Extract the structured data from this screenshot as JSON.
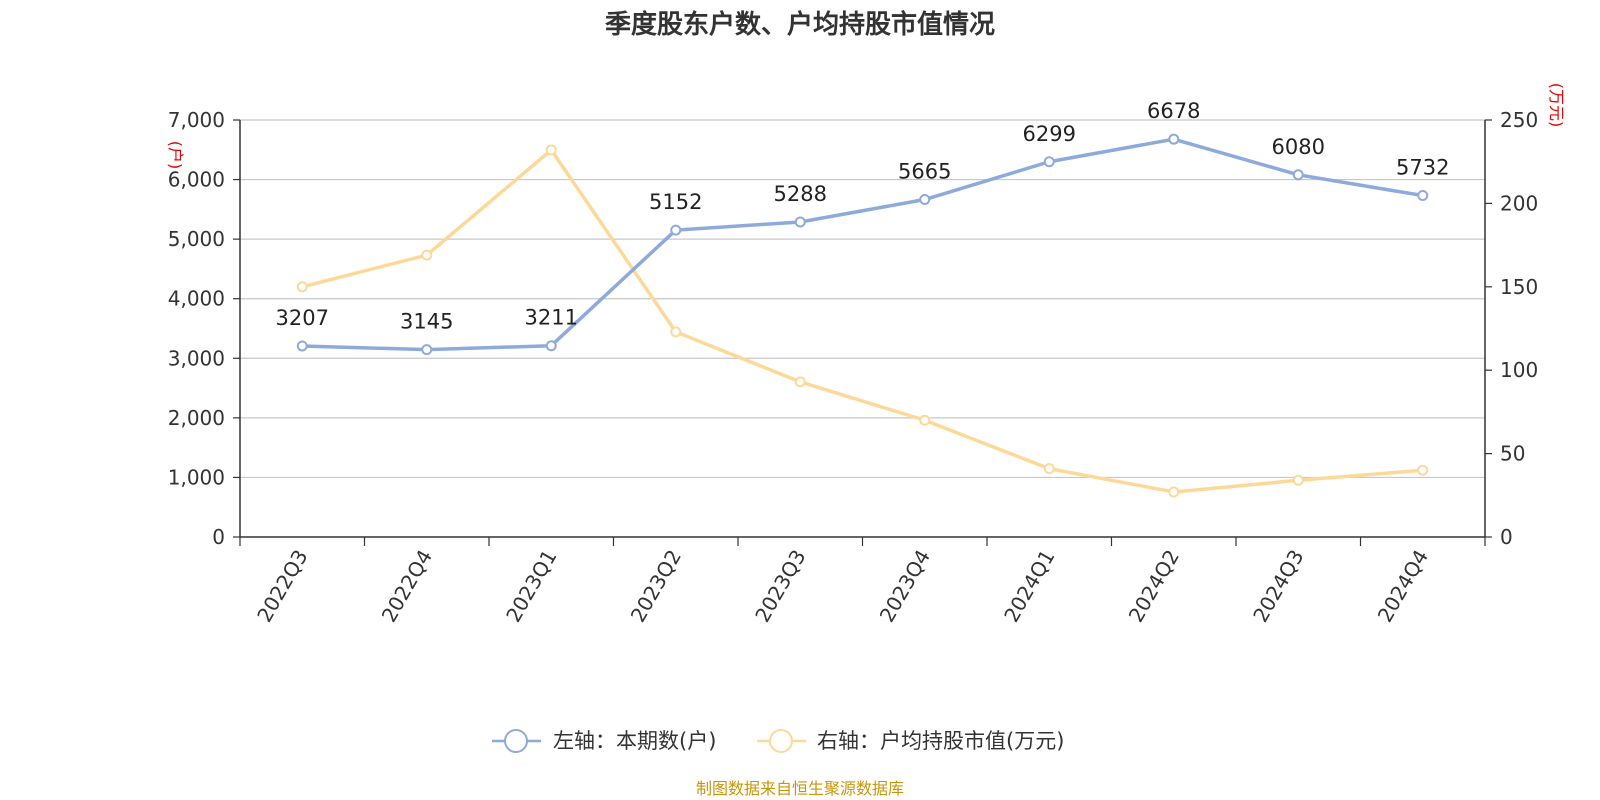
{
  "chart_data": {
    "type": "line",
    "title": "季度股东户数、户均持股市值情况",
    "categories": [
      "2022Q3",
      "2022Q4",
      "2023Q1",
      "2023Q2",
      "2023Q3",
      "2023Q4",
      "2024Q1",
      "2024Q2",
      "2024Q3",
      "2024Q4"
    ],
    "left_axis": {
      "unit": "(户)",
      "ylim": [
        0,
        7000
      ],
      "ticks": [
        0,
        1000,
        2000,
        3000,
        4000,
        5000,
        6000,
        7000
      ],
      "tick_labels": [
        "0",
        "1,000",
        "2,000",
        "3,000",
        "4,000",
        "5,000",
        "6,000",
        "7,000"
      ]
    },
    "right_axis": {
      "unit": "(万元)",
      "ylim": [
        0,
        250
      ],
      "ticks": [
        0,
        50,
        100,
        150,
        200,
        250
      ],
      "tick_labels": [
        "0",
        "50",
        "100",
        "150",
        "200",
        "250"
      ]
    },
    "series": [
      {
        "name": "左轴：本期数(户)",
        "axis": "left",
        "color": "#8eaadb",
        "values": [
          3207,
          3145,
          3211,
          5152,
          5288,
          5665,
          6299,
          6678,
          6080,
          5732
        ],
        "labels": [
          "3207",
          "3145",
          "3211",
          "5152",
          "5288",
          "5665",
          "6299",
          "6678",
          "6080",
          "5732"
        ]
      },
      {
        "name": "右轴：户均持股市值(万元)",
        "axis": "right",
        "color": "#fdd999",
        "values": [
          150,
          169,
          232,
          123,
          93,
          70,
          41,
          27,
          34,
          40
        ]
      }
    ],
    "grid": true,
    "legend_position": "bottom-center",
    "source_note": "制图数据来自恒生聚源数据库"
  }
}
